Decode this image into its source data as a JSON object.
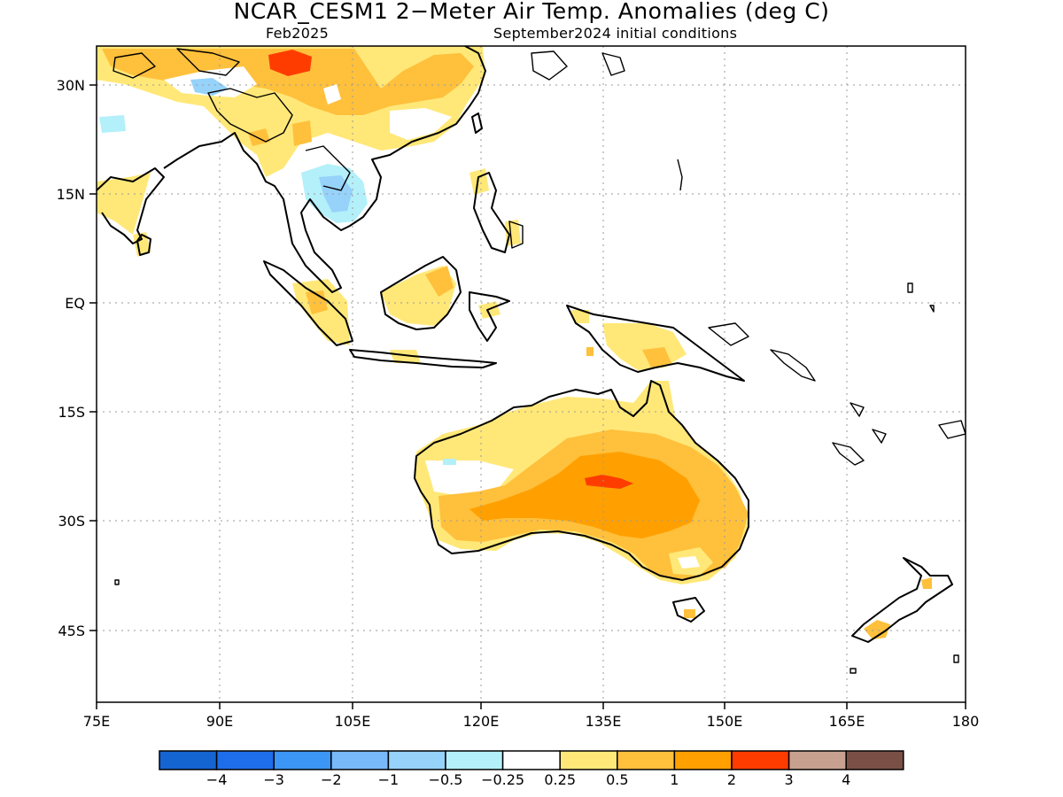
{
  "title": "NCAR_CESM1 2−Meter Air Temp. Anomalies (deg C)",
  "subtitle_left": "Feb2025",
  "subtitle_right": "September2024 initial conditions",
  "lon_ticks": [
    "75E",
    "90E",
    "105E",
    "120E",
    "135E",
    "150E",
    "165E",
    "180"
  ],
  "lat_ticks": [
    "30N",
    "15N",
    "EQ",
    "15S",
    "30S",
    "45S"
  ],
  "colorbar": {
    "labels": [
      "−4",
      "−3",
      "−2",
      "−1",
      "−0.5",
      "−0.25",
      "0.25",
      "0.5",
      "1",
      "2",
      "3",
      "4"
    ],
    "colors": [
      "#1464d2",
      "#1e6eeb",
      "#3c96f5",
      "#78b9fa",
      "#96d2fa",
      "#b4f0fa",
      "#ffffff",
      "#ffe878",
      "#ffc03c",
      "#ffa000",
      "#ff3c00",
      "#c8a090",
      "#7a5046"
    ]
  },
  "map_colors": {
    "land_outline": "#000000",
    "anom_025_05": "#ffe878",
    "anom_05_1": "#ffc03c",
    "anom_1_2": "#ffa000",
    "anom_2_3": "#ff3c00",
    "neg_025_05": "#b4f0fa",
    "neg_05_1": "#96d2fa",
    "grid": "#aaaaaa"
  }
}
